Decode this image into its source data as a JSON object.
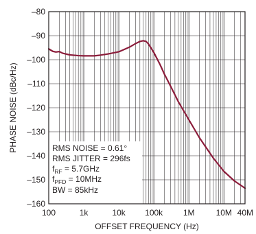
{
  "chart_data": {
    "type": "line",
    "xscale": "log",
    "xlabel": "OFFSET FREQUENCY (Hz)",
    "ylabel": "PHASE NOISE (dBc/Hz)",
    "xlim": [
      100,
      40000000
    ],
    "ylim": [
      -160,
      -80
    ],
    "grid": true,
    "x_tick_values": [
      100,
      1000,
      10000,
      100000,
      1000000,
      10000000,
      40000000
    ],
    "x_tick_labels": [
      "100",
      "1k",
      "10k",
      "100k",
      "1M",
      "10M",
      "40M"
    ],
    "y_tick_values": [
      -80,
      -90,
      -100,
      -110,
      -120,
      -130,
      -140,
      -150,
      -160
    ],
    "y_tick_labels": [
      "–80",
      "–90",
      "–100",
      "–110",
      "–120",
      "–130",
      "–140",
      "–150",
      "–160"
    ],
    "series": [
      {
        "color": "#8b1c3a",
        "points": [
          [
            100,
            -95.5
          ],
          [
            130,
            -96.5
          ],
          [
            160,
            -96.8
          ],
          [
            200,
            -96.6
          ],
          [
            250,
            -97.3
          ],
          [
            400,
            -98.0
          ],
          [
            700,
            -98.3
          ],
          [
            1000,
            -98.4
          ],
          [
            2000,
            -98.4
          ],
          [
            3000,
            -98.1
          ],
          [
            5000,
            -97.6
          ],
          [
            10000,
            -96.7
          ],
          [
            20000,
            -94.8
          ],
          [
            30000,
            -93.3
          ],
          [
            40000,
            -92.4
          ],
          [
            50000,
            -92.1
          ],
          [
            60000,
            -92.4
          ],
          [
            70000,
            -93.4
          ],
          [
            100000,
            -97.0
          ],
          [
            150000,
            -102.0
          ],
          [
            200000,
            -106.0
          ],
          [
            300000,
            -111.0
          ],
          [
            500000,
            -117.5
          ],
          [
            1000000,
            -125.0
          ],
          [
            2000000,
            -132.5
          ],
          [
            5000000,
            -141.0
          ],
          [
            10000000,
            -146.5
          ],
          [
            20000000,
            -150.5
          ],
          [
            40000000,
            -153.5
          ]
        ]
      }
    ],
    "annotations": {
      "line1": "RMS NOISE = 0.61°",
      "line2": "RMS JITTER = 296fs",
      "frf_f": "f",
      "frf_sub": "RF",
      "frf_val": " = 5.7GHz",
      "fpfd_f": "f",
      "fpfd_sub": "PFD",
      "fpfd_val": " = 10MHz",
      "bw": "BW = 85kHz"
    }
  }
}
